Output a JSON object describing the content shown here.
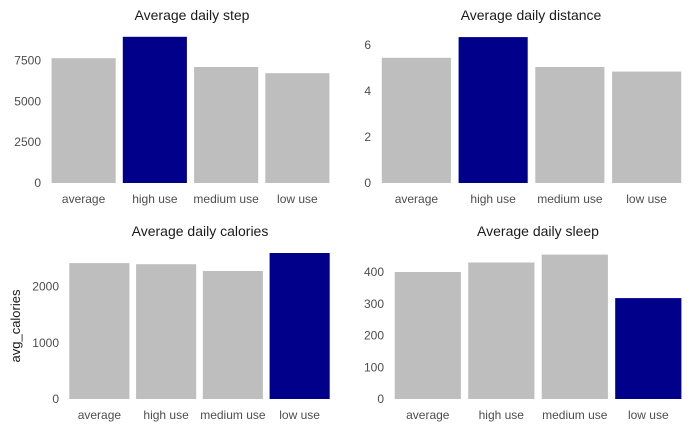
{
  "colors": {
    "base": "#bebebe",
    "highlight": "#00008b"
  },
  "chart_data": [
    {
      "type": "bar",
      "title": "Average daily step",
      "xlabel": "",
      "ylabel": "",
      "categories": [
        "average",
        "high use",
        "medium use",
        "low use"
      ],
      "values": [
        7640,
        8950,
        7100,
        6720
      ],
      "highlight": "high use",
      "ylim": [
        0,
        9000
      ],
      "yticks": [
        "0",
        "2500",
        "5000",
        "7500"
      ],
      "grid": false
    },
    {
      "type": "bar",
      "title": "Average daily distance",
      "xlabel": "",
      "ylabel": "",
      "categories": [
        "average",
        "high use",
        "medium use",
        "low use"
      ],
      "values": [
        5.45,
        6.35,
        5.05,
        4.85
      ],
      "highlight": "high use",
      "ylim": [
        0,
        6.4
      ],
      "yticks": [
        "0",
        "2",
        "4",
        "6"
      ],
      "grid": false
    },
    {
      "type": "bar",
      "title": "Average daily calories",
      "xlabel": "",
      "ylabel": "avg_calories",
      "categories": [
        "average",
        "high use",
        "medium use",
        "low use"
      ],
      "values": [
        2420,
        2400,
        2280,
        2600
      ],
      "highlight": "low use",
      "ylim": [
        0,
        2600
      ],
      "yticks": [
        "0",
        "1000",
        "2000"
      ],
      "grid": false
    },
    {
      "type": "bar",
      "title": "Average daily sleep",
      "xlabel": "",
      "ylabel": "",
      "categories": [
        "average",
        "high use",
        "medium use",
        "low use"
      ],
      "values": [
        400,
        430,
        455,
        318
      ],
      "highlight": "low use",
      "ylim": [
        0,
        460
      ],
      "yticks": [
        "0",
        "100",
        "200",
        "300",
        "400"
      ],
      "grid": false
    }
  ]
}
